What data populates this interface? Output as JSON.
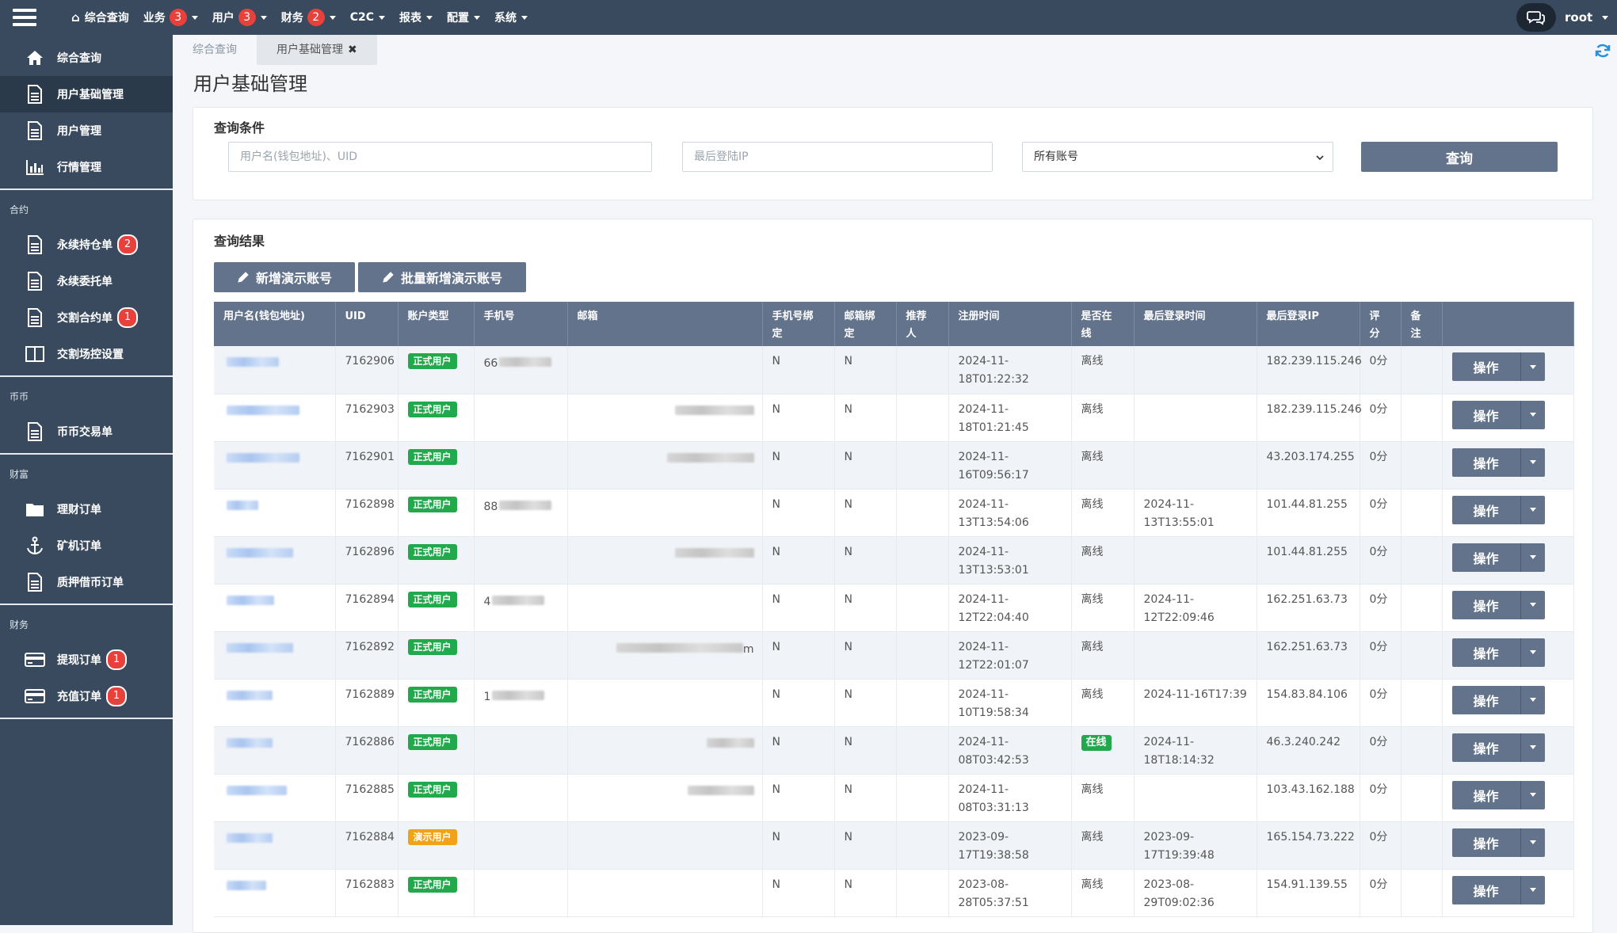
{
  "topnav": {
    "items": [
      {
        "label": "综合查询",
        "badge": ""
      },
      {
        "label": "业务",
        "badge": "3"
      },
      {
        "label": "用户",
        "badge": "3"
      },
      {
        "label": "财务",
        "badge": "2"
      },
      {
        "label": "C2C",
        "badge": ""
      },
      {
        "label": "报表",
        "badge": ""
      },
      {
        "label": "配置",
        "badge": ""
      },
      {
        "label": "系统",
        "badge": ""
      }
    ],
    "user": "root"
  },
  "sidebar": {
    "items": [
      {
        "label": "综合查询",
        "icon": "home-icon"
      },
      {
        "label": "用户基础管理",
        "icon": "document-icon"
      },
      {
        "label": "用户管理",
        "icon": "document-icon"
      },
      {
        "label": "行情管理",
        "icon": "bar-chart-icon"
      }
    ],
    "sections": [
      {
        "title": "合约",
        "items": [
          {
            "label": "永续持仓单",
            "badge": "2",
            "icon": "document-icon"
          },
          {
            "label": "永续委托单",
            "badge": "",
            "icon": "document-icon"
          },
          {
            "label": "交割合约单",
            "badge": "1",
            "icon": "document-icon"
          },
          {
            "label": "交割场控设置",
            "badge": "",
            "icon": "columns-icon"
          }
        ]
      },
      {
        "title": "币币",
        "items": [
          {
            "label": "币币交易单",
            "badge": "",
            "icon": "document-icon"
          }
        ]
      },
      {
        "title": "财富",
        "items": [
          {
            "label": "理财订单",
            "badge": "",
            "icon": "folder-icon"
          },
          {
            "label": "矿机订单",
            "badge": "",
            "icon": "anchor-icon"
          },
          {
            "label": "质押借币订单",
            "badge": "",
            "icon": "document-icon"
          }
        ]
      },
      {
        "title": "财务",
        "items": [
          {
            "label": "提现订单",
            "badge": "1",
            "icon": "credit-card-icon"
          },
          {
            "label": "充值订单",
            "badge": "1",
            "icon": "credit-card-icon"
          }
        ]
      }
    ]
  },
  "tabs": [
    {
      "label": "综合查询"
    },
    {
      "label": "用户基础管理"
    }
  ],
  "page": {
    "title": "用户基础管理"
  },
  "query": {
    "title": "查询条件",
    "username_placeholder": "用户名(钱包地址)、UID",
    "ip_placeholder": "最后登陆IP",
    "account_select": "所有账号",
    "button": "查询"
  },
  "results": {
    "title": "查询结果",
    "add_demo": "新增演示账号",
    "batch_add_demo": "批量新增演示账号",
    "columns": [
      {
        "line1": "用户名(钱包地址)",
        "line2": ""
      },
      {
        "line1": "UID",
        "line2": ""
      },
      {
        "line1": "账户类型",
        "line2": ""
      },
      {
        "line1": "手机号",
        "line2": ""
      },
      {
        "line1": "邮箱",
        "line2": ""
      },
      {
        "line1": "手机号绑",
        "line2": "定"
      },
      {
        "line1": "邮箱绑",
        "line2": "定"
      },
      {
        "line1": "推荐",
        "line2": "人"
      },
      {
        "line1": "注册时间",
        "line2": ""
      },
      {
        "line1": "是否在",
        "line2": "线"
      },
      {
        "line1": "最后登录时间",
        "line2": ""
      },
      {
        "line1": "最后登录IP",
        "line2": ""
      },
      {
        "line1": "评",
        "line2": "分"
      },
      {
        "line1": "备",
        "line2": "注"
      },
      {
        "line1": "",
        "line2": ""
      }
    ],
    "op_label": "操作",
    "rows": [
      {
        "uid": "7162906",
        "type": "正式用户",
        "phone_prefix": "66",
        "phone_suffix": "",
        "phone_blur": true,
        "email_blur": false,
        "email_suffix": "",
        "phone_bind": "N",
        "email_bind": "N",
        "referrer": "",
        "reg_date": "2024-11-",
        "reg_time": "18T01:22:32",
        "online": "离线",
        "last_date": "",
        "last_time": "",
        "ip": "182.239.115.246",
        "score": "0分",
        "remark": ""
      },
      {
        "uid": "7162903",
        "type": "正式用户",
        "phone_prefix": "",
        "phone_suffix": "",
        "phone_blur": false,
        "email_blur": true,
        "email_suffix": "",
        "phone_bind": "N",
        "email_bind": "N",
        "referrer": "",
        "reg_date": "2024-11-",
        "reg_time": "18T01:21:45",
        "online": "离线",
        "last_date": "",
        "last_time": "",
        "ip": "182.239.115.246",
        "score": "0分",
        "remark": ""
      },
      {
        "uid": "7162901",
        "type": "正式用户",
        "phone_prefix": "",
        "phone_suffix": "",
        "phone_blur": false,
        "email_blur": true,
        "email_suffix": "",
        "phone_bind": "N",
        "email_bind": "N",
        "referrer": "",
        "reg_date": "2024-11-",
        "reg_time": "16T09:56:17",
        "online": "离线",
        "last_date": "",
        "last_time": "",
        "ip": "43.203.174.255",
        "score": "0分",
        "remark": ""
      },
      {
        "uid": "7162898",
        "type": "正式用户",
        "phone_prefix": "88",
        "phone_suffix": "",
        "phone_blur": true,
        "email_blur": false,
        "email_suffix": "",
        "phone_bind": "N",
        "email_bind": "N",
        "referrer": "",
        "reg_date": "2024-11-",
        "reg_time": "13T13:54:06",
        "online": "离线",
        "last_date": "2024-11-",
        "last_time": "13T13:55:01",
        "ip": "101.44.81.255",
        "score": "0分",
        "remark": ""
      },
      {
        "uid": "7162896",
        "type": "正式用户",
        "phone_prefix": "",
        "phone_suffix": "",
        "phone_blur": false,
        "email_blur": true,
        "email_suffix": "",
        "phone_bind": "N",
        "email_bind": "N",
        "referrer": "",
        "reg_date": "2024-11-",
        "reg_time": "13T13:53:01",
        "online": "离线",
        "last_date": "",
        "last_time": "",
        "ip": "101.44.81.255",
        "score": "0分",
        "remark": ""
      },
      {
        "uid": "7162894",
        "type": "正式用户",
        "phone_prefix": "4",
        "phone_suffix": "",
        "phone_blur": true,
        "email_blur": false,
        "email_suffix": "",
        "phone_bind": "N",
        "email_bind": "N",
        "referrer": "",
        "reg_date": "2024-11-",
        "reg_time": "12T22:04:40",
        "online": "离线",
        "last_date": "2024-11-",
        "last_time": "12T22:09:46",
        "ip": "162.251.63.73",
        "score": "0分",
        "remark": ""
      },
      {
        "uid": "7162892",
        "type": "正式用户",
        "phone_prefix": "",
        "phone_suffix": "",
        "phone_blur": false,
        "email_blur": true,
        "email_suffix": "m",
        "phone_bind": "N",
        "email_bind": "N",
        "referrer": "",
        "reg_date": "2024-11-",
        "reg_time": "12T22:01:07",
        "online": "离线",
        "last_date": "",
        "last_time": "",
        "ip": "162.251.63.73",
        "score": "0分",
        "remark": ""
      },
      {
        "uid": "7162889",
        "type": "正式用户",
        "phone_prefix": "1",
        "phone_suffix": "",
        "phone_blur": true,
        "email_blur": false,
        "email_suffix": "",
        "phone_bind": "N",
        "email_bind": "N",
        "referrer": "",
        "reg_date": "2024-11-",
        "reg_time": "10T19:58:34",
        "online": "离线",
        "last_date": "2024-11-16T17:39",
        "last_time": "",
        "ip": "154.83.84.106",
        "score": "0分",
        "remark": ""
      },
      {
        "uid": "7162886",
        "type": "正式用户",
        "phone_prefix": "",
        "phone_suffix": "",
        "phone_blur": false,
        "email_blur": true,
        "email_suffix": "",
        "phone_bind": "N",
        "email_bind": "N",
        "referrer": "",
        "reg_date": "2024-11-",
        "reg_time": "08T03:42:53",
        "online": "在线",
        "last_date": "2024-11-",
        "last_time": "18T18:14:32",
        "ip": "46.3.240.242",
        "score": "0分",
        "remark": ""
      },
      {
        "uid": "7162885",
        "type": "正式用户",
        "phone_prefix": "",
        "phone_suffix": "",
        "phone_blur": false,
        "email_blur": true,
        "email_suffix": "",
        "phone_bind": "N",
        "email_bind": "N",
        "referrer": "",
        "reg_date": "2024-11-",
        "reg_time": "08T03:31:13",
        "online": "离线",
        "last_date": "",
        "last_time": "",
        "ip": "103.43.162.188",
        "score": "0分",
        "remark": ""
      },
      {
        "uid": "7162884",
        "type": "演示用户",
        "phone_prefix": "",
        "phone_suffix": "",
        "phone_blur": false,
        "email_blur": false,
        "email_suffix": "",
        "phone_bind": "N",
        "email_bind": "N",
        "referrer": "",
        "reg_date": "2023-09-",
        "reg_time": "17T19:38:58",
        "online": "离线",
        "last_date": "2023-09-",
        "last_time": "17T19:39:48",
        "ip": "165.154.73.222",
        "score": "0分",
        "remark": ""
      },
      {
        "uid": "7162883",
        "type": "正式用户",
        "phone_prefix": "",
        "phone_suffix": "",
        "phone_blur": false,
        "email_blur": false,
        "email_suffix": "",
        "phone_bind": "N",
        "email_bind": "N",
        "referrer": "",
        "reg_date": "2023-08-",
        "reg_time": "28T05:37:51",
        "online": "离线",
        "last_date": "2023-08-",
        "last_time": "29T09:02:36",
        "ip": "154.91.139.55",
        "score": "0分",
        "remark": ""
      }
    ]
  }
}
